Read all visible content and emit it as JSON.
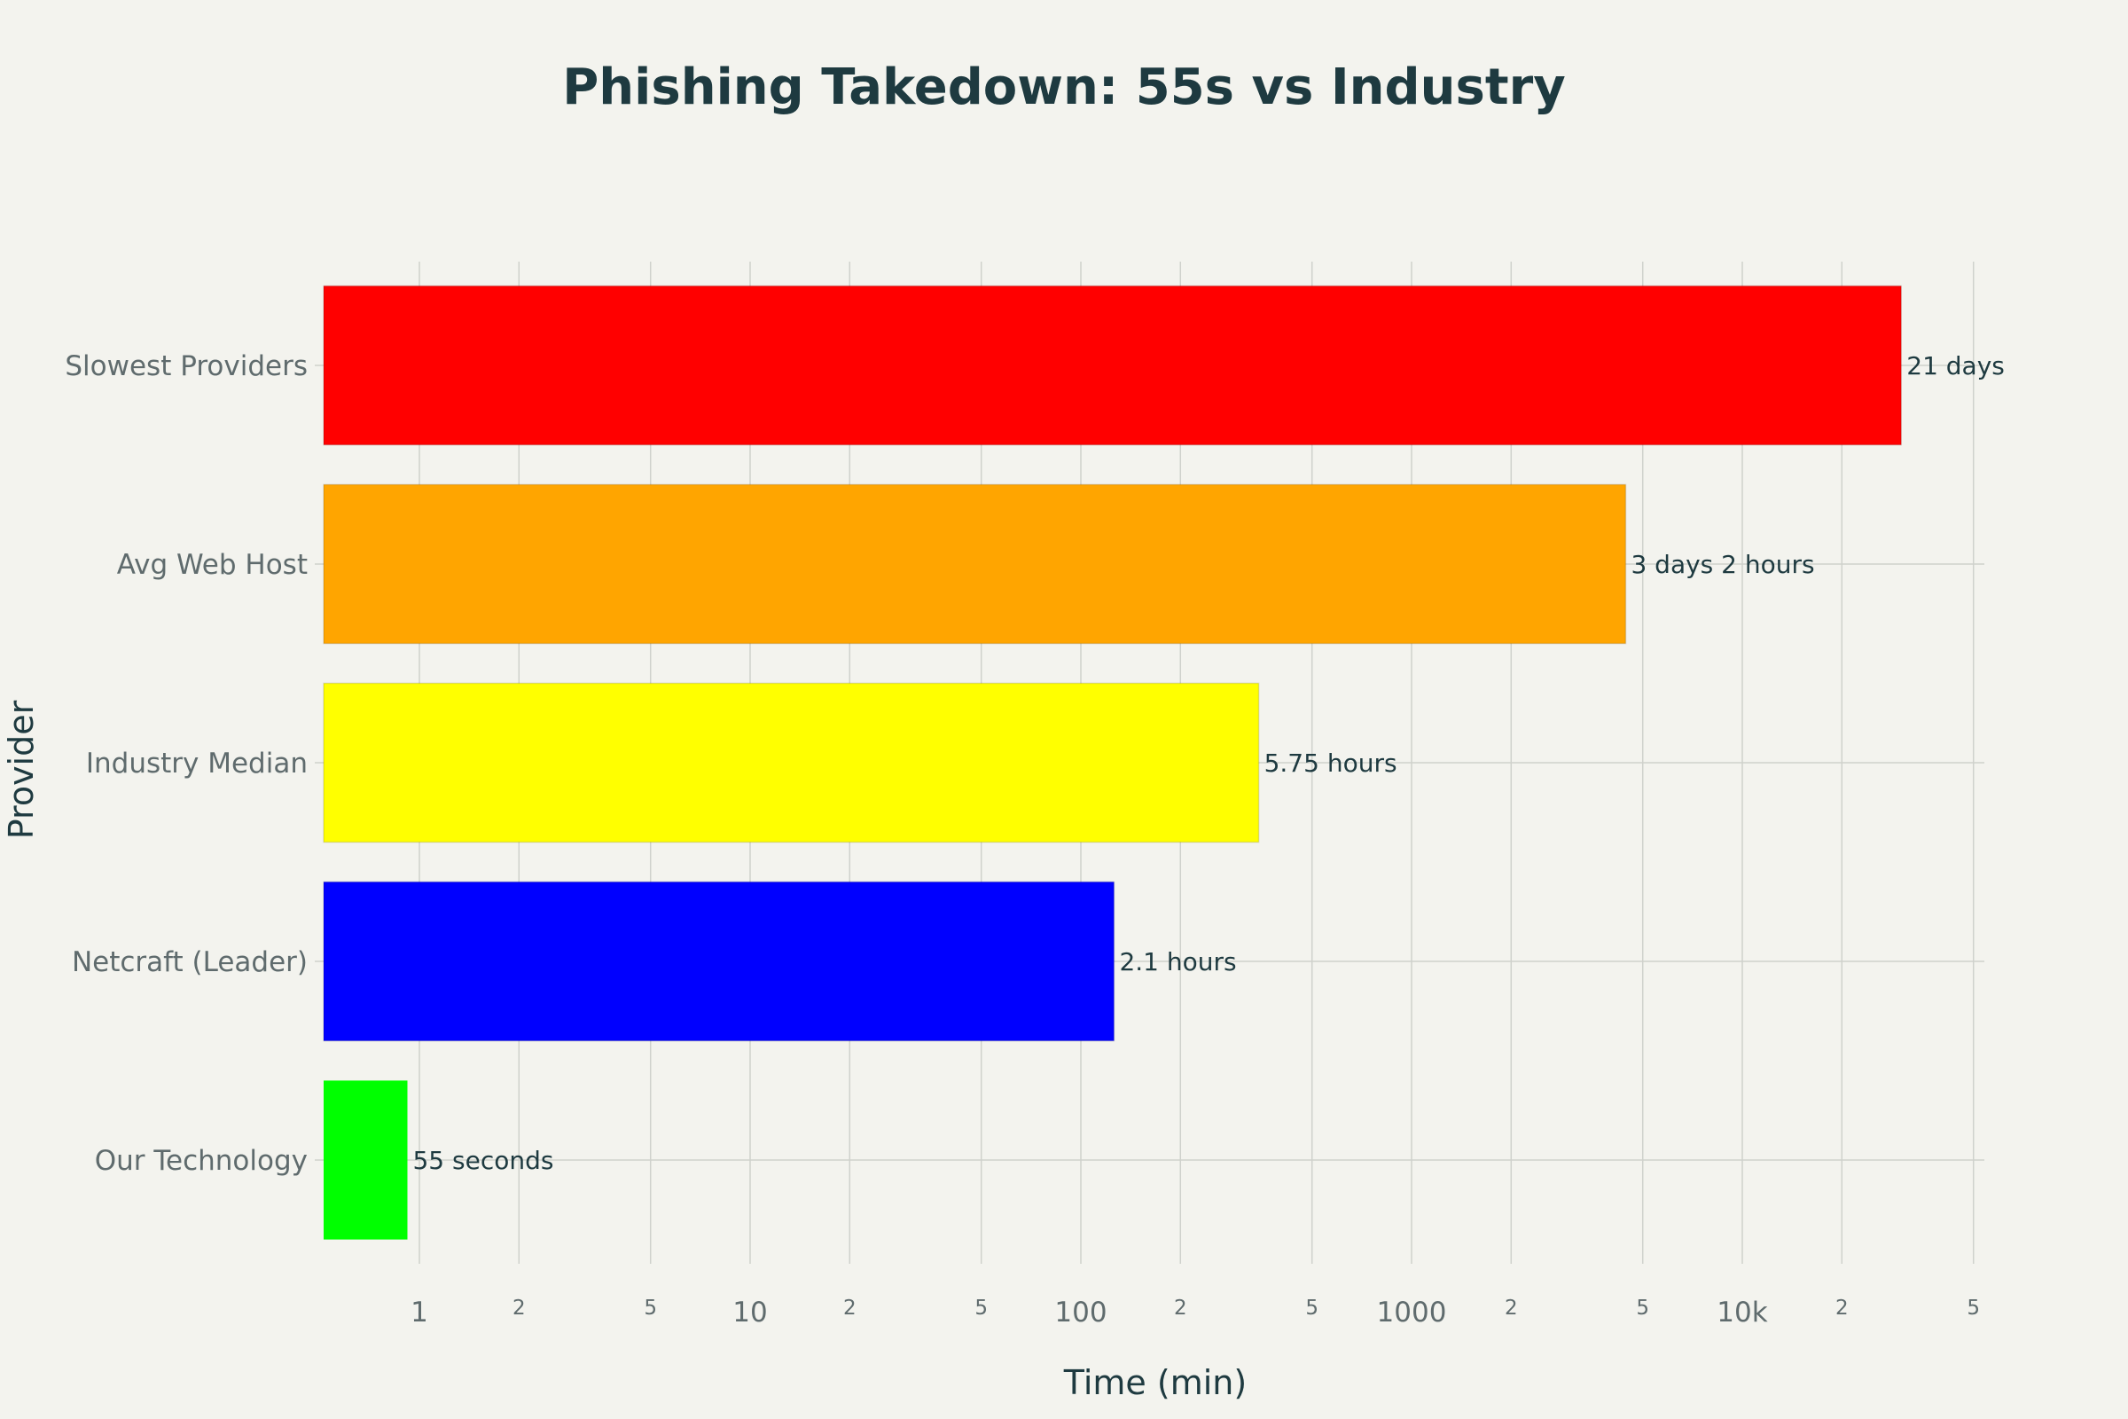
{
  "chart_data": {
    "type": "bar",
    "orientation": "horizontal",
    "title": "Phishing Takedown: 55s vs Industry",
    "xlabel": "Time (min)",
    "ylabel": "Provider",
    "x_scale": "log",
    "xlim": [
      0.5,
      60000
    ],
    "grid": true,
    "legend": "none",
    "categories": [
      "Our Technology",
      "Netcraft (Leader)",
      "Industry Median",
      "Avg Web Host",
      "Slowest Providers"
    ],
    "values": [
      0.92,
      126,
      345,
      4440,
      30240
    ],
    "data_labels": [
      "55 seconds",
      "2.1 hours",
      "5.75 hours",
      "3 days 2 hours",
      "21 days"
    ],
    "colors": [
      "#00ff00",
      "#0000ff",
      "#ffff00",
      "#ffa500",
      "#ff0000"
    ],
    "x_ticks": [
      {
        "value": 1,
        "label": "1",
        "major": true
      },
      {
        "value": 2,
        "label": "2",
        "major": false
      },
      {
        "value": 5,
        "label": "5",
        "major": false
      },
      {
        "value": 10,
        "label": "10",
        "major": true
      },
      {
        "value": 20,
        "label": "2",
        "major": false
      },
      {
        "value": 50,
        "label": "5",
        "major": false
      },
      {
        "value": 100,
        "label": "100",
        "major": true
      },
      {
        "value": 200,
        "label": "2",
        "major": false
      },
      {
        "value": 500,
        "label": "5",
        "major": false
      },
      {
        "value": 1000,
        "label": "1000",
        "major": true
      },
      {
        "value": 2000,
        "label": "2",
        "major": false
      },
      {
        "value": 5000,
        "label": "5",
        "major": false
      },
      {
        "value": 10000,
        "label": "10k",
        "major": true
      },
      {
        "value": 20000,
        "label": "2",
        "major": false
      },
      {
        "value": 50000,
        "label": "5",
        "major": false
      }
    ]
  }
}
